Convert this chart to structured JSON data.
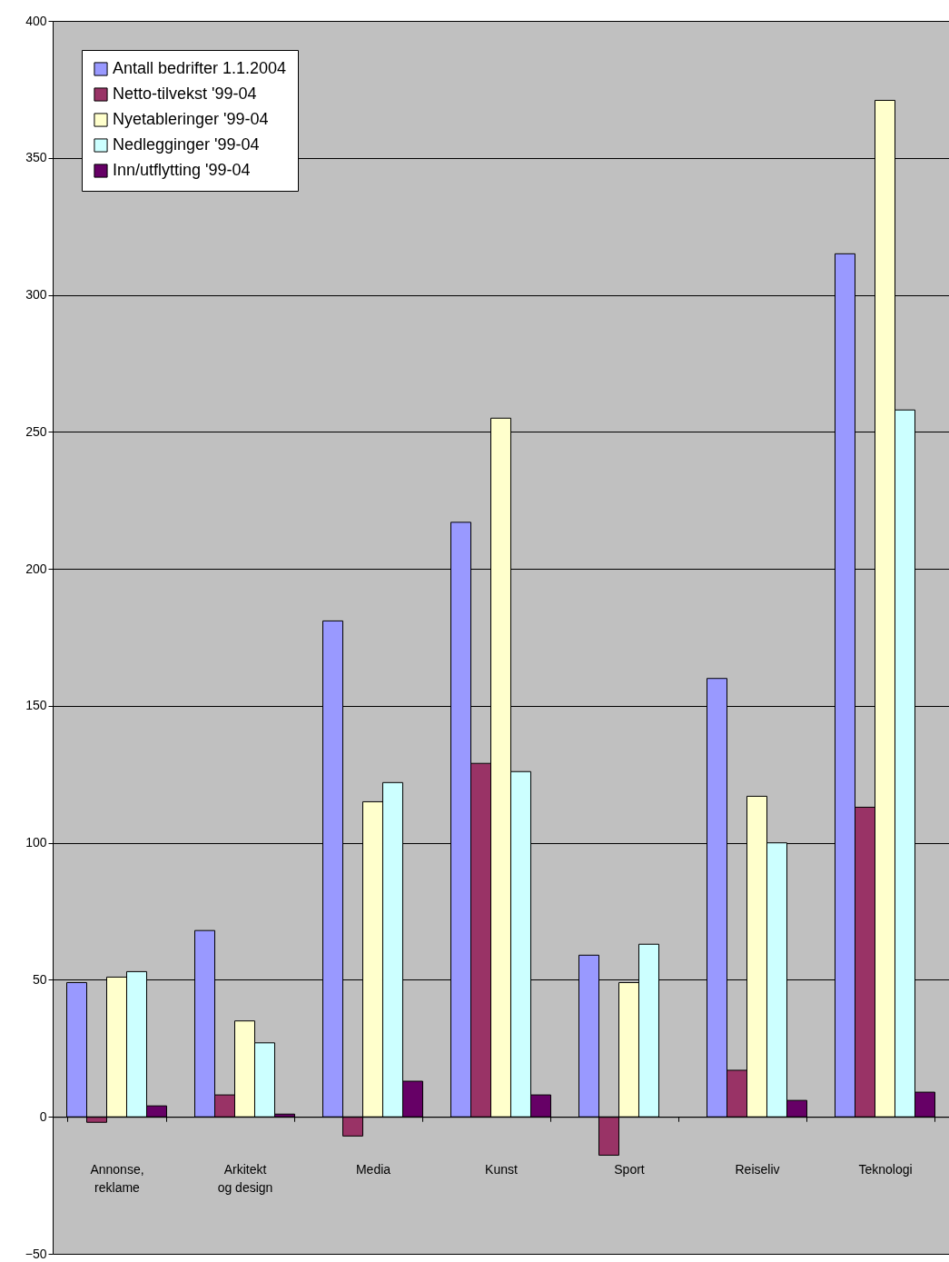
{
  "chart_data": {
    "type": "bar",
    "categories": [
      "Annonse, reklame",
      "Arkitekt og design",
      "Media",
      "Kunst",
      "Sport",
      "Reiseliv",
      "Teknologi"
    ],
    "series": [
      {
        "name": "Antall bedrifter 1.1.2004",
        "color": "#9999ff",
        "values": [
          49,
          68,
          181,
          217,
          59,
          160,
          315
        ]
      },
      {
        "name": "Netto-tilvekst '99-04",
        "color": "#993366",
        "values": [
          -2,
          8,
          -7,
          129,
          -14,
          17,
          113
        ]
      },
      {
        "name": "Nyetableringer '99-04",
        "color": "#ffffcc",
        "values": [
          51,
          35,
          115,
          255,
          49,
          117,
          371
        ]
      },
      {
        "name": "Nedlegginger '99-04",
        "color": "#ccffff",
        "values": [
          53,
          27,
          122,
          126,
          63,
          100,
          258
        ]
      },
      {
        "name": "Inn/utflytting '99-04",
        "color": "#660066",
        "values": [
          4,
          1,
          13,
          8,
          null,
          6,
          9
        ]
      }
    ],
    "ylim": [
      -50,
      400
    ],
    "yticks": [
      -50,
      0,
      50,
      100,
      150,
      200,
      250,
      300,
      350,
      400
    ],
    "grid": "y",
    "legend": "top left"
  }
}
